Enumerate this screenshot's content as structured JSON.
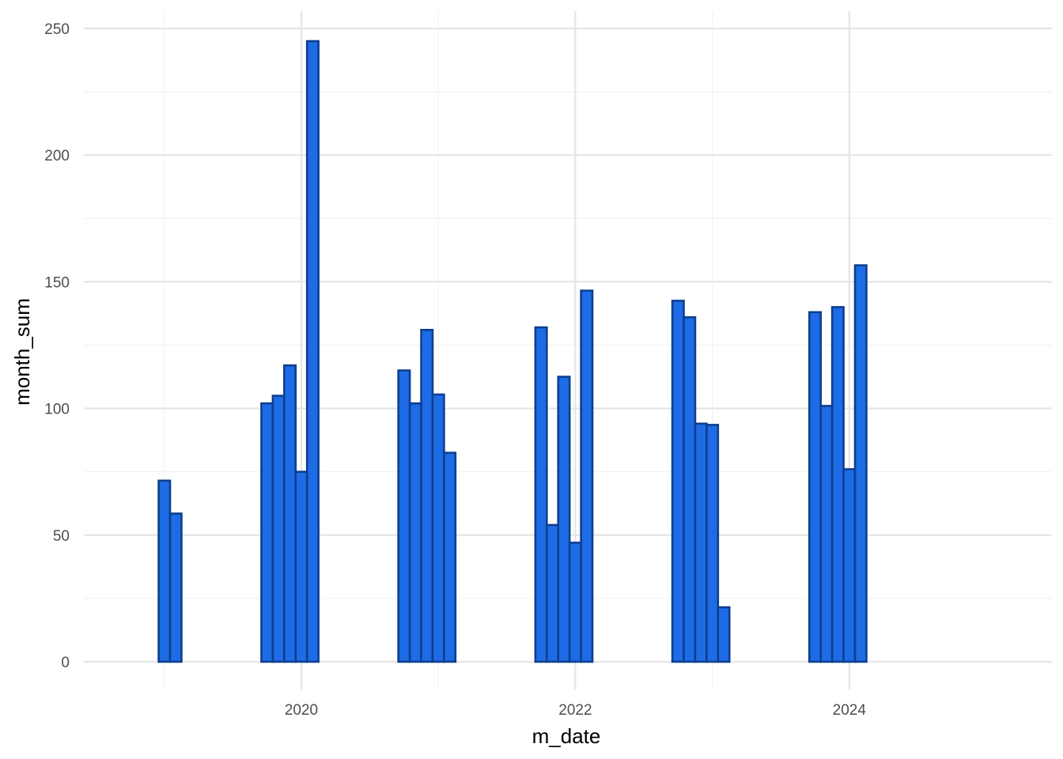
{
  "chart_data": {
    "type": "bar",
    "xlabel": "m_date",
    "ylabel": "month_sum",
    "ylim": [
      0,
      250
    ],
    "y_ticks": [
      "0",
      "50",
      "100",
      "150",
      "200",
      "250"
    ],
    "x_ticks": [
      "2020",
      "2022",
      "2024"
    ],
    "grid": true,
    "fill_color": "#1e6be6",
    "stroke_color": "#0d3f8f",
    "x": [
      "2019-01",
      "2019-02",
      "2019-10",
      "2019-11",
      "2019-12",
      "2020-01",
      "2020-02",
      "2020-10",
      "2020-11",
      "2020-12",
      "2021-01",
      "2021-02",
      "2021-10",
      "2021-11",
      "2021-12",
      "2022-01",
      "2022-02",
      "2022-10",
      "2022-11",
      "2022-12",
      "2023-01",
      "2023-02",
      "2023-10",
      "2023-11",
      "2023-12",
      "2024-01",
      "2024-02"
    ],
    "values": [
      71.5,
      58.5,
      102,
      105,
      117,
      75,
      245,
      115,
      102,
      131,
      105.5,
      82.5,
      132,
      54,
      112.5,
      47,
      146.5,
      142.5,
      136,
      94,
      93.5,
      21.5,
      138,
      101,
      140,
      76,
      156.5
    ]
  }
}
